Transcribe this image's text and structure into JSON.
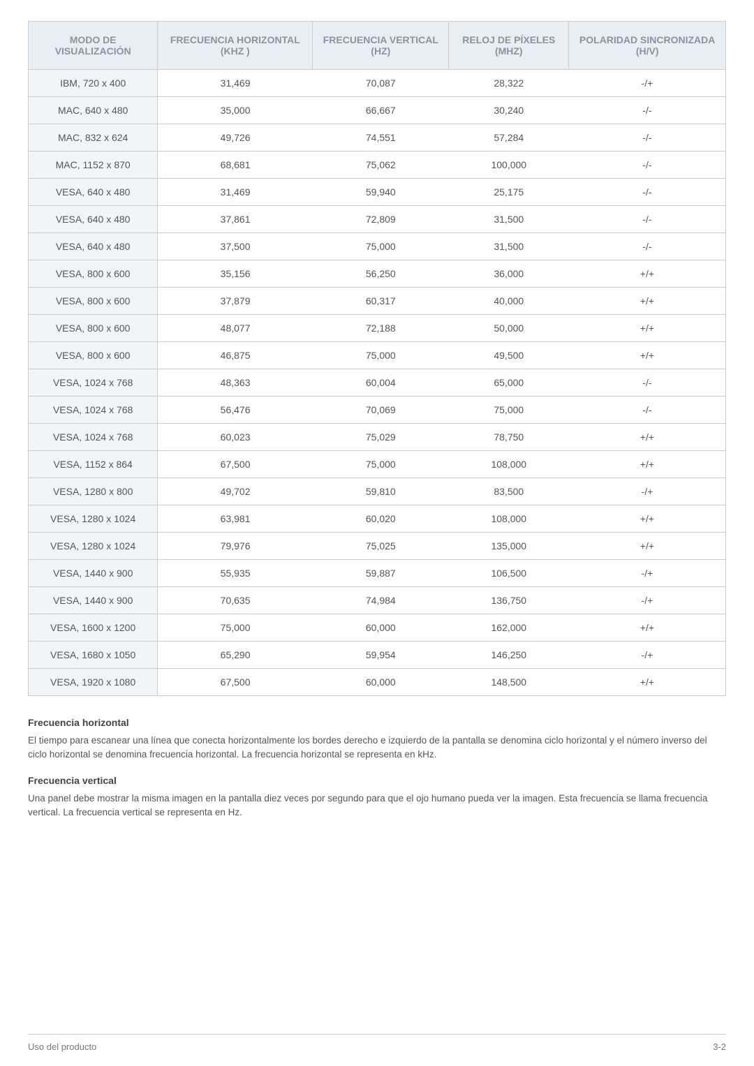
{
  "table": {
    "columns": [
      "MODO DE VISUALIZACIÓN",
      "FRECUENCIA HORIZONTAL (KHZ )",
      "FRECUENCIA VERTICAL (HZ)",
      "RELOJ DE PÍXELES (MHZ)",
      "POLARIDAD SINCRONIZADA (H/V)"
    ],
    "rows": [
      [
        "IBM, 720 x 400",
        "31,469",
        "70,087",
        "28,322",
        "-/+"
      ],
      [
        "MAC, 640 x 480",
        "35,000",
        "66,667",
        "30,240",
        "-/-"
      ],
      [
        "MAC, 832 x 624",
        "49,726",
        "74,551",
        "57,284",
        "-/-"
      ],
      [
        "MAC, 1152 x 870",
        "68,681",
        "75,062",
        "100,000",
        "-/-"
      ],
      [
        "VESA, 640 x 480",
        "31,469",
        "59,940",
        "25,175",
        "-/-"
      ],
      [
        "VESA, 640 x 480",
        "37,861",
        "72,809",
        "31,500",
        "-/-"
      ],
      [
        "VESA, 640 x 480",
        "37,500",
        "75,000",
        "31,500",
        "-/-"
      ],
      [
        "VESA, 800 x 600",
        "35,156",
        "56,250",
        "36,000",
        "+/+"
      ],
      [
        "VESA, 800 x 600",
        "37,879",
        "60,317",
        "40,000",
        "+/+"
      ],
      [
        "VESA, 800 x 600",
        "48,077",
        "72,188",
        "50,000",
        "+/+"
      ],
      [
        "VESA, 800 x 600",
        "46,875",
        "75,000",
        "49,500",
        "+/+"
      ],
      [
        "VESA, 1024 x 768",
        "48,363",
        "60,004",
        "65,000",
        "-/-"
      ],
      [
        "VESA, 1024 x 768",
        "56,476",
        "70,069",
        "75,000",
        "-/-"
      ],
      [
        "VESA, 1024 x 768",
        "60,023",
        "75,029",
        "78,750",
        "+/+"
      ],
      [
        "VESA, 1152 x 864",
        "67,500",
        "75,000",
        "108,000",
        "+/+"
      ],
      [
        "VESA, 1280 x 800",
        "49,702",
        "59,810",
        "83,500",
        "-/+"
      ],
      [
        "VESA, 1280 x 1024",
        "63,981",
        "60,020",
        "108,000",
        "+/+"
      ],
      [
        "VESA, 1280 x 1024",
        "79,976",
        "75,025",
        "135,000",
        "+/+"
      ],
      [
        "VESA, 1440 x 900",
        "55,935",
        "59,887",
        "106,500",
        "-/+"
      ],
      [
        "VESA, 1440 x 900",
        "70,635",
        "74,984",
        "136,750",
        "-/+"
      ],
      [
        "VESA, 1600 x 1200",
        "75,000",
        "60,000",
        "162,000",
        "+/+"
      ],
      [
        "VESA, 1680 x 1050",
        "65,290",
        "59,954",
        "146,250",
        "-/+"
      ],
      [
        "VESA, 1920 x 1080",
        "67,500",
        "60,000",
        "148,500",
        "+/+"
      ]
    ],
    "header_bg": "#e8eef2",
    "header_color": "#8a93a5",
    "firstcol_bg": "#f2f5f7",
    "border_color": "#cccccc"
  },
  "sections": [
    {
      "title": "Frecuencia horizontal",
      "text": "El tiempo para escanear una línea que conecta horizontalmente los bordes derecho e izquierdo de la pantalla se denomina ciclo horizontal y el número inverso del ciclo horizontal se denomina frecuencia horizontal. La frecuencia horizontal se representa en kHz."
    },
    {
      "title": "Frecuencia vertical",
      "text": "Una panel debe mostrar la misma imagen en la pantalla diez veces por segundo para que el ojo humano pueda ver la imagen. Esta frecuencia se llama frecuencia vertical. La frecuencia vertical se representa en Hz."
    }
  ],
  "footer": {
    "left": "Uso del producto",
    "right": "3-2"
  }
}
